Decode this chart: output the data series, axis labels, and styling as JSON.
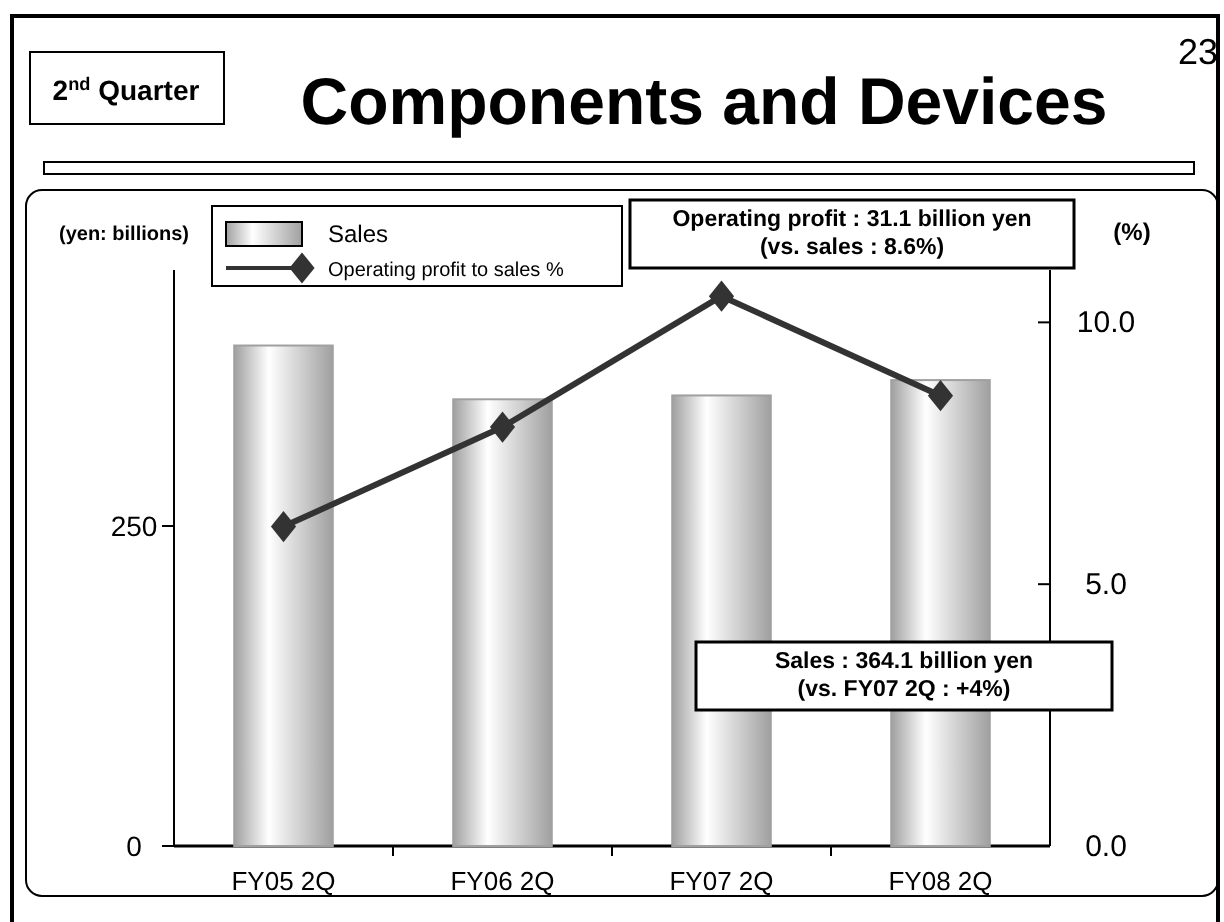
{
  "chart_data": {
    "type": "bar",
    "title": "Components and Devices",
    "subtitle": "2$^{nd}$ Quarter",
    "ylabel": "(yen: billions)",
    "y2label": "(%)",
    "categories": [
      "FY05 2Q",
      "FY06 2Q",
      "FY07 2Q",
      "FY08 2Q"
    ],
    "series": [
      {
        "name": "Sales",
        "color": "#a0a0a0",
        "values": [
          391,
          349,
          352,
          364
        ]
      },
      {
        "name": "Operating profit to sales %",
        "type": "line",
        "axis": "y2",
        "color": "#333333",
        "values": [
          6.1,
          8.0,
          10.5,
          8.6
        ]
      }
    ],
    "ylim": [
      0,
      450
    ],
    "yticks": [
      0,
      250
    ],
    "y2lim": [
      0,
      11
    ],
    "y2ticks": [
      {
        "value": 0,
        "label": "0.0"
      },
      {
        "value": 5,
        "label": "5.0"
      },
      {
        "value": 10,
        "label": "10.0"
      }
    ],
    "marker": "diamond",
    "legend": "top left",
    "annotations": [
      "Operating profit : 31.1 billion yen\n(vs. sales : 8.6%)",
      "Sales : 364.1 billion yen\n(vs. FY07 2Q : +4%)",
      "23"
    ]
  }
}
